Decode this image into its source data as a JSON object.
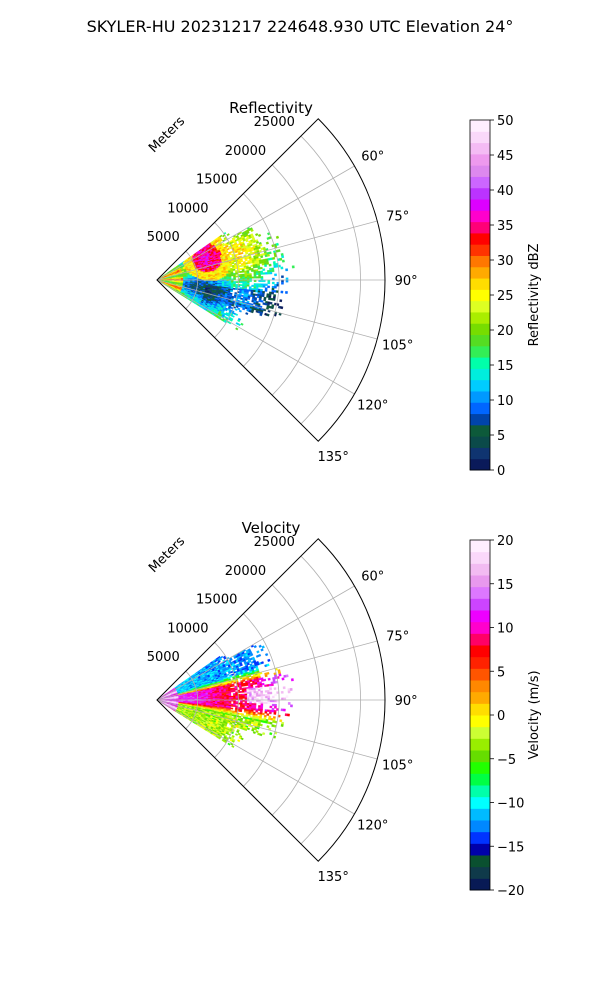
{
  "figure_title": "SKYLER-HU  20231217  224648.930 UTC Elevation 24°",
  "chart_data": [
    {
      "type": "heatmap",
      "projection": "polar-sector",
      "title": "Reflectivity",
      "radial_axis_label": "Meters",
      "radial_ticks": [
        5000,
        10000,
        15000,
        20000,
        25000
      ],
      "radial_tick_labels": [
        "5000",
        "10000",
        "15000",
        "20000",
        "25000"
      ],
      "rlim": [
        0,
        28000
      ],
      "angular_ticks_deg": [
        60,
        75,
        90,
        105,
        120,
        135
      ],
      "angular_tick_labels": [
        "60°",
        "75°",
        "90°",
        "105°",
        "120°",
        "135°"
      ],
      "theta_range_deg": [
        45,
        135
      ],
      "grid": true,
      "colorbar": {
        "label": "Reflectivity dBZ",
        "min": 0,
        "max": 50,
        "ticks": [
          0,
          5,
          10,
          15,
          20,
          25,
          30,
          35,
          40,
          45,
          50
        ],
        "tick_labels": [
          "0",
          "5",
          "10",
          "15",
          "20",
          "25",
          "30",
          "35",
          "40",
          "45",
          "50"
        ]
      },
      "data_extent": {
        "azimuth_range_deg": [
          55,
          120
        ],
        "max_range_m": 16000,
        "typical_value_range": [
          10,
          35
        ],
        "core_max_value": 36,
        "core_location": {
          "azimuth_deg": 66,
          "range_m": 6500
        }
      }
    },
    {
      "type": "heatmap",
      "projection": "polar-sector",
      "title": "Velocity",
      "radial_axis_label": "Meters",
      "radial_ticks": [
        5000,
        10000,
        15000,
        20000,
        25000
      ],
      "radial_tick_labels": [
        "5000",
        "10000",
        "15000",
        "20000",
        "25000"
      ],
      "rlim": [
        0,
        28000
      ],
      "angular_ticks_deg": [
        60,
        75,
        90,
        105,
        120,
        135
      ],
      "angular_tick_labels": [
        "60°",
        "75°",
        "90°",
        "105°",
        "120°",
        "135°"
      ],
      "theta_range_deg": [
        45,
        135
      ],
      "grid": true,
      "colorbar": {
        "label": "Velocity (m/s)",
        "min": -20,
        "max": 20,
        "ticks": [
          -20,
          -15,
          -10,
          -5,
          0,
          5,
          10,
          15,
          20
        ],
        "tick_labels": [
          "−20",
          "−15",
          "−10",
          "−5",
          "0",
          "5",
          "10",
          "15",
          "20"
        ]
      },
      "data_extent": {
        "azimuth_range_deg": [
          55,
          120
        ],
        "max_range_m": 16000,
        "typical_value_range": [
          -12,
          15
        ],
        "pattern": "inbound (cyan) at northern azimuths, outbound (red/magenta) at 80-95 deg, near-zero (yellow/green) at southern azimuths"
      }
    }
  ],
  "colormaps": {
    "reflectivity": [
      "#0a1a5a",
      "#0f3470",
      "#0b4a4a",
      "#0d5a3a",
      "#0044aa",
      "#0066ff",
      "#0099ff",
      "#00ccff",
      "#00eedd",
      "#00ffaa",
      "#33ee55",
      "#55dd22",
      "#77dd00",
      "#aaee00",
      "#ddff22",
      "#ffff00",
      "#ffdd00",
      "#ffaa00",
      "#ff7700",
      "#ff3300",
      "#ff0000",
      "#ff0077",
      "#ff00cc",
      "#dd00ff",
      "#bb33ff",
      "#cc66ff",
      "#dd88ee",
      "#ee99ee",
      "#f4bbf4",
      "#fad8fa",
      "#ffeeff"
    ],
    "velocity": [
      "#081a55",
      "#0f3a4a",
      "#0a5030",
      "#0000aa",
      "#0033ff",
      "#0088ff",
      "#00bbff",
      "#00ffff",
      "#00ffaa",
      "#00ff44",
      "#22ff00",
      "#66dd00",
      "#99ee00",
      "#ccff33",
      "#ffff00",
      "#ffdd00",
      "#ffaa00",
      "#ff8800",
      "#ff5500",
      "#ff2200",
      "#ff0000",
      "#ff0066",
      "#ff00cc",
      "#ee00ff",
      "#cc44ff",
      "#dd77ff",
      "#e899ee",
      "#f2bbf2",
      "#fad8fa",
      "#ffeeff"
    ]
  }
}
